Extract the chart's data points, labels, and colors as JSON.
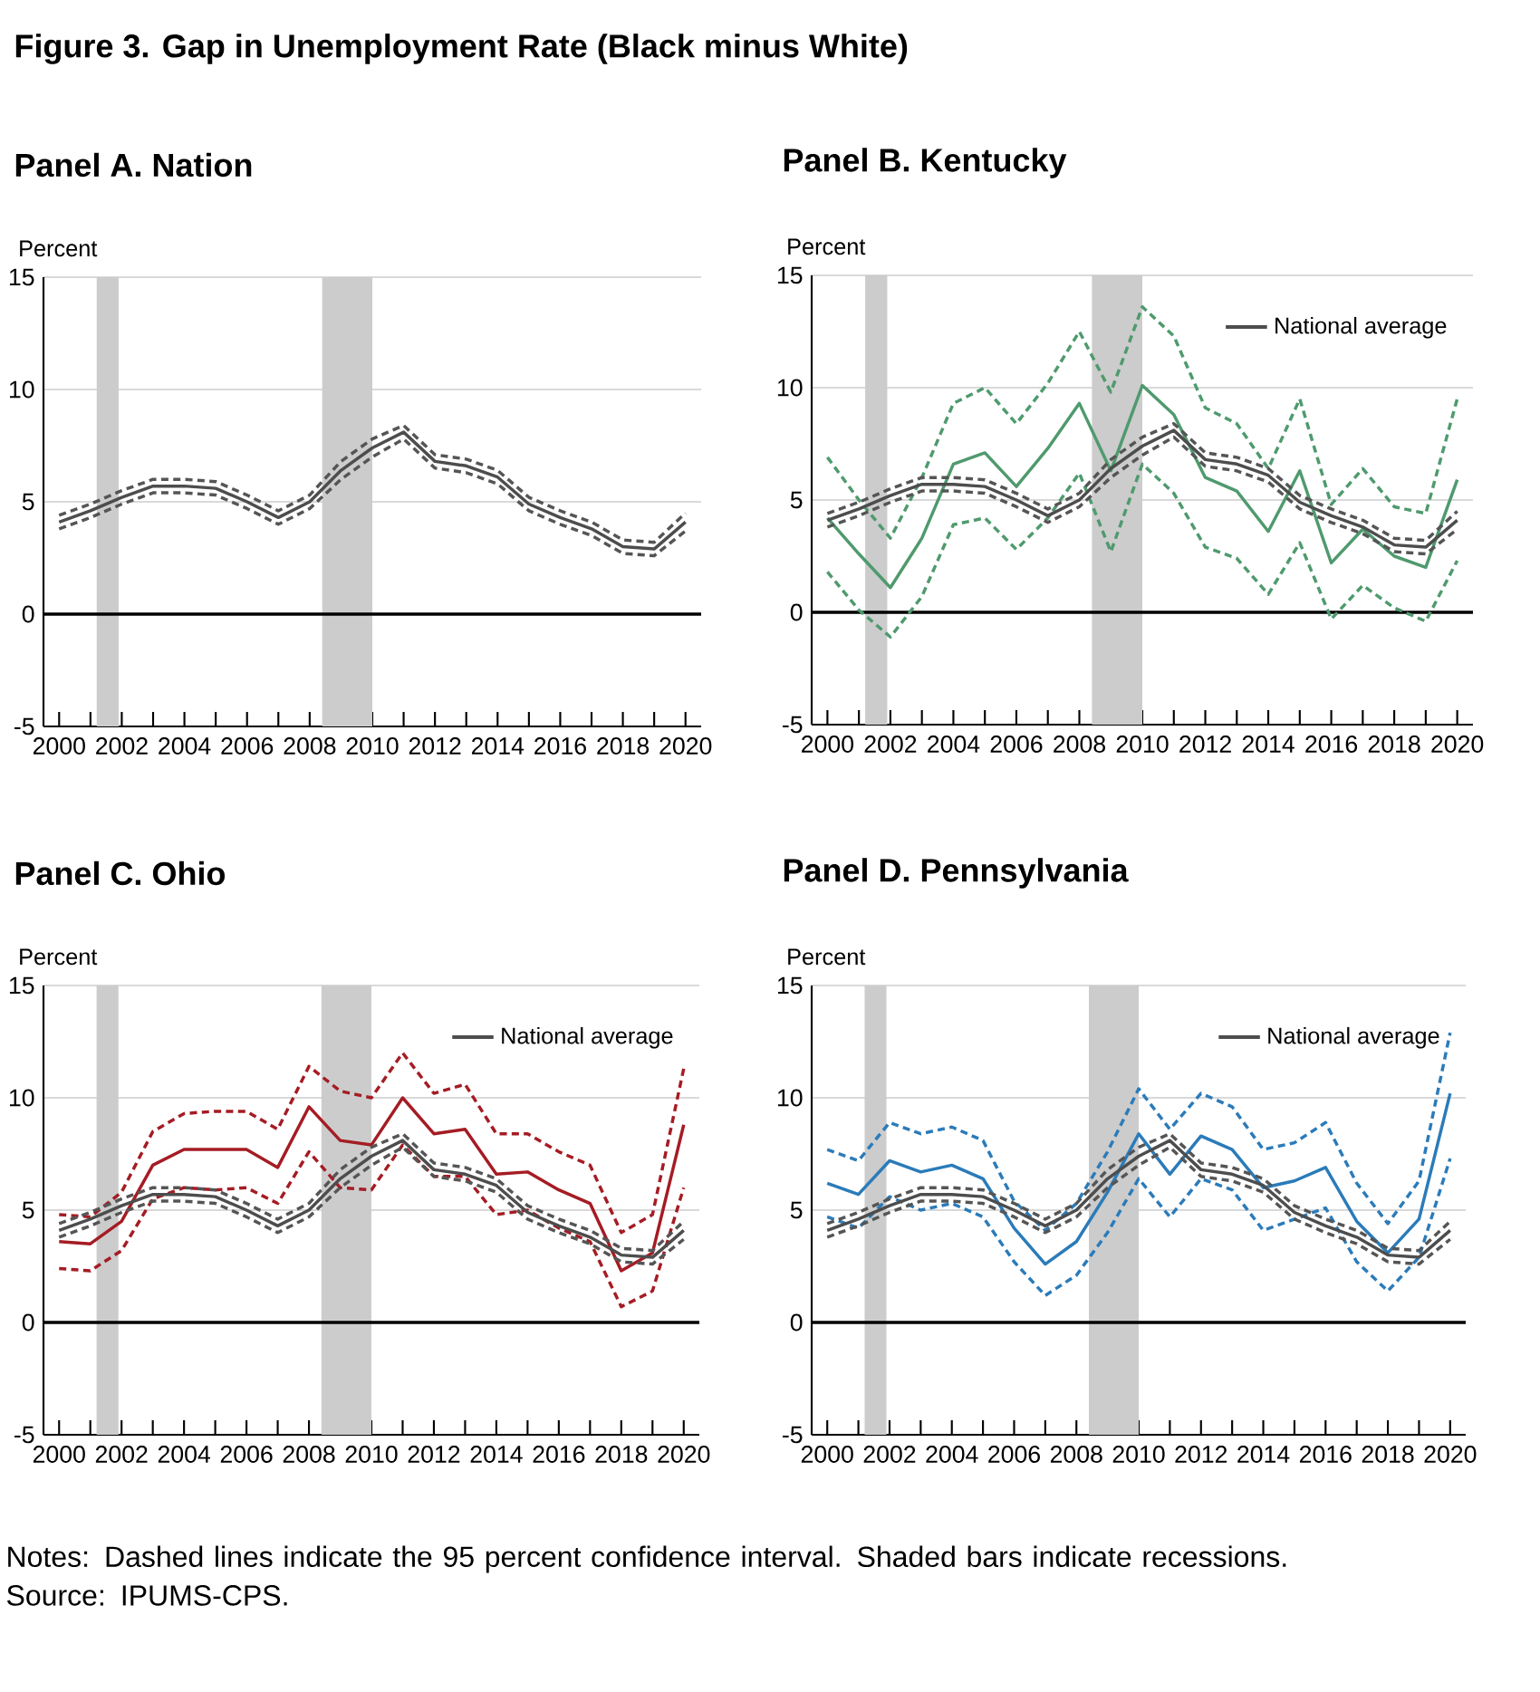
{
  "chart_data": [
    {
      "type": "line",
      "title": "Figure 3.    Gap in Unemployment Rate (Black minus White)",
      "subtitle": "Panel A. Nation",
      "ylabel": "Percent",
      "x": [
        2000,
        2001,
        2002,
        2003,
        2004,
        2005,
        2006,
        2007,
        2008,
        2009,
        2010,
        2011,
        2012,
        2013,
        2014,
        2015,
        2016,
        2017,
        2018,
        2019,
        2020
      ],
      "xlim": [
        1999.5,
        2020.5
      ],
      "xticks": [
        2000,
        {
          "value": 2001,
          "label": null
        },
        2002,
        {
          "value": 2003,
          "label": null
        },
        2004,
        {
          "value": 2005,
          "label": null
        },
        2006,
        {
          "value": 2007,
          "label": null
        },
        2008,
        {
          "value": 2009,
          "label": null
        },
        2010,
        {
          "value": 2011,
          "label": null
        },
        2012,
        {
          "value": 2013,
          "label": null
        },
        2014,
        {
          "value": 2015,
          "label": null
        },
        2016,
        {
          "value": 2017,
          "label": null
        },
        2018,
        {
          "value": 2019,
          "label": null
        },
        2020
      ],
      "ylim": [
        -5,
        15
      ],
      "yticks": [
        -5,
        0,
        5,
        10,
        15
      ],
      "grid": "y",
      "bands": [
        {
          "axis": "x",
          "from": 2001.2,
          "to": 2001.9,
          "color": "#cccccc"
        },
        {
          "axis": "x",
          "from": 2008.4,
          "to": 2010.0,
          "color": "#cccccc"
        }
      ],
      "ref_lines": [
        {
          "axis": "y",
          "value": 0,
          "color": "#000000"
        }
      ],
      "series": [
        {
          "color": "#555555",
          "line_style": "dashed",
          "values": [
            4.4,
            4.9,
            5.5,
            6.0,
            6.0,
            5.9,
            5.3,
            4.6,
            5.3,
            6.8,
            7.8,
            8.4,
            7.1,
            6.9,
            6.4,
            5.2,
            4.6,
            4.1,
            3.3,
            3.2,
            4.5
          ]
        },
        {
          "color": "#555555",
          "line_style": "dashed",
          "values": [
            3.8,
            4.3,
            4.9,
            5.4,
            5.4,
            5.3,
            4.7,
            4.0,
            4.7,
            6.0,
            7.0,
            7.8,
            6.5,
            6.3,
            5.8,
            4.6,
            4.0,
            3.5,
            2.7,
            2.6,
            3.7
          ]
        },
        {
          "color": "#4d4d4d",
          "line_style": "solid",
          "values": [
            4.1,
            4.6,
            5.2,
            5.7,
            5.7,
            5.6,
            5.0,
            4.3,
            5.0,
            6.4,
            7.4,
            8.1,
            6.8,
            6.6,
            6.1,
            4.9,
            4.3,
            3.8,
            3.0,
            2.9,
            4.1
          ]
        }
      ]
    },
    {
      "type": "line",
      "title": "Panel B. Kentucky",
      "ylabel": "Percent",
      "x": [
        2000,
        2001,
        2002,
        2003,
        2004,
        2005,
        2006,
        2007,
        2008,
        2009,
        2010,
        2011,
        2012,
        2013,
        2014,
        2015,
        2016,
        2017,
        2018,
        2019,
        2020
      ],
      "xlim": [
        1999.5,
        2020.5
      ],
      "xticks": [
        2000,
        {
          "value": 2001,
          "label": null
        },
        2002,
        {
          "value": 2003,
          "label": null
        },
        2004,
        {
          "value": 2005,
          "label": null
        },
        2006,
        {
          "value": 2007,
          "label": null
        },
        2008,
        {
          "value": 2009,
          "label": null
        },
        2010,
        {
          "value": 2011,
          "label": null
        },
        2012,
        {
          "value": 2013,
          "label": null
        },
        2014,
        {
          "value": 2015,
          "label": null
        },
        2016,
        {
          "value": 2017,
          "label": null
        },
        2018,
        {
          "value": 2019,
          "label": null
        },
        2020
      ],
      "ylim": [
        -5,
        15
      ],
      "yticks": [
        -5,
        0,
        5,
        10,
        15
      ],
      "grid": "y",
      "legend": "top right",
      "bands": [
        {
          "axis": "x",
          "from": 2001.2,
          "to": 2001.9,
          "color": "#cccccc"
        },
        {
          "axis": "x",
          "from": 2008.4,
          "to": 2010.0,
          "color": "#cccccc"
        }
      ],
      "ref_lines": [
        {
          "axis": "y",
          "value": 0,
          "color": "#000000"
        }
      ],
      "series": [
        {
          "color": "#4f9a6e",
          "line_style": "dashed",
          "values": [
            6.9,
            5.0,
            3.3,
            6.0,
            9.3,
            10.0,
            8.4,
            10.2,
            12.5,
            9.8,
            13.6,
            12.3,
            9.1,
            8.4,
            6.4,
            9.5,
            4.8,
            6.4,
            4.7,
            4.4,
            9.5
          ]
        },
        {
          "color": "#4f9a6e",
          "line_style": "dashed",
          "values": [
            1.8,
            0.1,
            -1.1,
            0.7,
            3.9,
            4.2,
            2.8,
            4.2,
            6.2,
            2.7,
            6.6,
            5.3,
            2.9,
            2.4,
            0.8,
            3.1,
            -0.3,
            1.2,
            0.2,
            -0.4,
            2.3
          ]
        },
        {
          "color": "#4f9a6e",
          "line_style": "solid",
          "values": [
            4.2,
            2.6,
            1.1,
            3.3,
            6.6,
            7.1,
            5.6,
            7.3,
            9.3,
            6.3,
            10.1,
            8.8,
            6.0,
            5.4,
            3.6,
            6.3,
            2.2,
            3.7,
            2.5,
            2.0,
            5.9
          ]
        },
        {
          "color": "#555555",
          "line_style": "dashed",
          "values": [
            4.4,
            4.9,
            5.5,
            6.0,
            6.0,
            5.9,
            5.3,
            4.6,
            5.3,
            6.8,
            7.8,
            8.4,
            7.1,
            6.9,
            6.4,
            5.2,
            4.6,
            4.1,
            3.3,
            3.2,
            4.5
          ]
        },
        {
          "color": "#555555",
          "line_style": "dashed",
          "values": [
            3.8,
            4.3,
            4.9,
            5.4,
            5.4,
            5.3,
            4.7,
            4.0,
            4.7,
            6.0,
            7.0,
            7.8,
            6.5,
            6.3,
            5.8,
            4.6,
            4.0,
            3.5,
            2.7,
            2.6,
            3.7
          ]
        },
        {
          "name": "National average",
          "color": "#4d4d4d",
          "line_style": "solid",
          "values": [
            4.1,
            4.6,
            5.2,
            5.7,
            5.7,
            5.6,
            5.0,
            4.3,
            5.0,
            6.4,
            7.4,
            8.1,
            6.8,
            6.6,
            6.1,
            4.9,
            4.3,
            3.8,
            3.0,
            2.9,
            4.1
          ]
        }
      ]
    },
    {
      "type": "line",
      "title": "Panel C. Ohio",
      "ylabel": "Percent",
      "x": [
        2000,
        2001,
        2002,
        2003,
        2004,
        2005,
        2006,
        2007,
        2008,
        2009,
        2010,
        2011,
        2012,
        2013,
        2014,
        2015,
        2016,
        2017,
        2018,
        2019,
        2020
      ],
      "xlim": [
        1999.5,
        2020.5
      ],
      "xticks": [
        2000,
        {
          "value": 2001,
          "label": null
        },
        2002,
        {
          "value": 2003,
          "label": null
        },
        2004,
        {
          "value": 2005,
          "label": null
        },
        2006,
        {
          "value": 2007,
          "label": null
        },
        2008,
        {
          "value": 2009,
          "label": null
        },
        2010,
        {
          "value": 2011,
          "label": null
        },
        2012,
        {
          "value": 2013,
          "label": null
        },
        2014,
        {
          "value": 2015,
          "label": null
        },
        2016,
        {
          "value": 2017,
          "label": null
        },
        2018,
        {
          "value": 2019,
          "label": null
        },
        2020
      ],
      "ylim": [
        -5,
        15
      ],
      "yticks": [
        -5,
        0,
        5,
        10,
        15
      ],
      "grid": "y",
      "legend": "top right",
      "bands": [
        {
          "axis": "x",
          "from": 2001.2,
          "to": 2001.9,
          "color": "#cccccc"
        },
        {
          "axis": "x",
          "from": 2008.4,
          "to": 2010.0,
          "color": "#cccccc"
        }
      ],
      "ref_lines": [
        {
          "axis": "y",
          "value": 0,
          "color": "#000000"
        }
      ],
      "series": [
        {
          "color": "#a51c24",
          "line_style": "dashed",
          "values": [
            4.8,
            4.7,
            5.8,
            8.5,
            9.3,
            9.4,
            9.4,
            8.6,
            11.4,
            10.3,
            10.0,
            12.0,
            10.2,
            10.6,
            8.4,
            8.4,
            7.6,
            7.0,
            4.0,
            4.8,
            11.3
          ]
        },
        {
          "color": "#a51c24",
          "line_style": "dashed",
          "values": [
            2.4,
            2.3,
            3.2,
            5.5,
            6.0,
            5.9,
            6.0,
            5.3,
            7.6,
            6.0,
            5.9,
            7.9,
            6.5,
            6.5,
            4.8,
            5.0,
            4.2,
            3.6,
            0.7,
            1.4,
            6.0
          ]
        },
        {
          "color": "#a51c24",
          "line_style": "solid",
          "values": [
            3.6,
            3.5,
            4.5,
            7.0,
            7.7,
            7.7,
            7.7,
            6.9,
            9.6,
            8.1,
            7.9,
            10.0,
            8.4,
            8.6,
            6.6,
            6.7,
            5.9,
            5.3,
            2.3,
            3.1,
            8.8
          ]
        },
        {
          "color": "#555555",
          "line_style": "dashed",
          "values": [
            4.4,
            4.9,
            5.5,
            6.0,
            6.0,
            5.9,
            5.3,
            4.6,
            5.3,
            6.8,
            7.8,
            8.4,
            7.1,
            6.9,
            6.4,
            5.2,
            4.6,
            4.1,
            3.3,
            3.2,
            4.5
          ]
        },
        {
          "color": "#555555",
          "line_style": "dashed",
          "values": [
            3.8,
            4.3,
            4.9,
            5.4,
            5.4,
            5.3,
            4.7,
            4.0,
            4.7,
            6.0,
            7.0,
            7.8,
            6.5,
            6.3,
            5.8,
            4.6,
            4.0,
            3.5,
            2.7,
            2.6,
            3.7
          ]
        },
        {
          "name": "National average",
          "color": "#4d4d4d",
          "line_style": "solid",
          "values": [
            4.1,
            4.6,
            5.2,
            5.7,
            5.7,
            5.6,
            5.0,
            4.3,
            5.0,
            6.4,
            7.4,
            8.1,
            6.8,
            6.6,
            6.1,
            4.9,
            4.3,
            3.8,
            3.0,
            2.9,
            4.1
          ]
        }
      ]
    },
    {
      "type": "line",
      "title": "Panel D. Pennsylvania",
      "ylabel": "Percent",
      "x": [
        2000,
        2001,
        2002,
        2003,
        2004,
        2005,
        2006,
        2007,
        2008,
        2009,
        2010,
        2011,
        2012,
        2013,
        2014,
        2015,
        2016,
        2017,
        2018,
        2019,
        2020
      ],
      "xlim": [
        1999.5,
        2020.5
      ],
      "xticks": [
        2000,
        {
          "value": 2001,
          "label": null
        },
        2002,
        {
          "value": 2003,
          "label": null
        },
        2004,
        {
          "value": 2005,
          "label": null
        },
        2006,
        {
          "value": 2007,
          "label": null
        },
        2008,
        {
          "value": 2009,
          "label": null
        },
        2010,
        {
          "value": 2011,
          "label": null
        },
        2012,
        {
          "value": 2013,
          "label": null
        },
        2014,
        {
          "value": 2015,
          "label": null
        },
        2016,
        {
          "value": 2017,
          "label": null
        },
        2018,
        {
          "value": 2019,
          "label": null
        },
        2020
      ],
      "ylim": [
        -5,
        15
      ],
      "yticks": [
        -5,
        0,
        5,
        10,
        15
      ],
      "grid": "y",
      "legend": "top right",
      "bands": [
        {
          "axis": "x",
          "from": 2001.2,
          "to": 2001.9,
          "color": "#cccccc"
        },
        {
          "axis": "x",
          "from": 2008.4,
          "to": 2010.0,
          "color": "#cccccc"
        }
      ],
      "ref_lines": [
        {
          "axis": "y",
          "value": 0,
          "color": "#000000"
        }
      ],
      "annotations": [
        "Notes: Dashed lines indicate the 95 percent confidence interval. Shaded bars indicate recessions.",
        "Source: IPUMS-CPS."
      ],
      "series": [
        {
          "color": "#2b7bb9",
          "line_style": "dashed",
          "values": [
            7.7,
            7.2,
            8.9,
            8.4,
            8.7,
            8.1,
            5.4,
            4.1,
            5.3,
            7.6,
            10.4,
            8.6,
            10.2,
            9.6,
            7.7,
            8.0,
            8.9,
            6.2,
            4.4,
            6.3,
            12.9
          ]
        },
        {
          "color": "#2b7bb9",
          "line_style": "dashed",
          "values": [
            4.7,
            4.2,
            5.6,
            5.0,
            5.3,
            4.7,
            2.7,
            1.2,
            2.1,
            4.0,
            6.4,
            4.7,
            6.4,
            5.9,
            4.1,
            4.6,
            5.1,
            2.7,
            1.4,
            2.9,
            7.3
          ]
        },
        {
          "color": "#2b7bb9",
          "line_style": "solid",
          "values": [
            6.2,
            5.7,
            7.2,
            6.7,
            7.0,
            6.4,
            4.2,
            2.6,
            3.6,
            5.8,
            8.4,
            6.6,
            8.3,
            7.7,
            6.0,
            6.3,
            6.9,
            4.5,
            3.1,
            4.6,
            10.2
          ]
        },
        {
          "color": "#555555",
          "line_style": "dashed",
          "values": [
            4.4,
            4.9,
            5.5,
            6.0,
            6.0,
            5.9,
            5.3,
            4.6,
            5.3,
            6.8,
            7.8,
            8.4,
            7.1,
            6.9,
            6.4,
            5.2,
            4.6,
            4.1,
            3.3,
            3.2,
            4.5
          ]
        },
        {
          "color": "#555555",
          "line_style": "dashed",
          "values": [
            3.8,
            4.3,
            4.9,
            5.4,
            5.4,
            5.3,
            4.7,
            4.0,
            4.7,
            6.0,
            7.0,
            7.8,
            6.5,
            6.3,
            5.8,
            4.6,
            4.0,
            3.5,
            2.7,
            2.6,
            3.7
          ]
        },
        {
          "name": "National average",
          "color": "#4d4d4d",
          "line_style": "solid",
          "values": [
            4.1,
            4.6,
            5.2,
            5.7,
            5.7,
            5.6,
            5.0,
            4.3,
            5.0,
            6.4,
            7.4,
            8.1,
            6.8,
            6.6,
            6.1,
            4.9,
            4.3,
            3.8,
            3.0,
            2.9,
            4.1
          ]
        }
      ]
    }
  ]
}
